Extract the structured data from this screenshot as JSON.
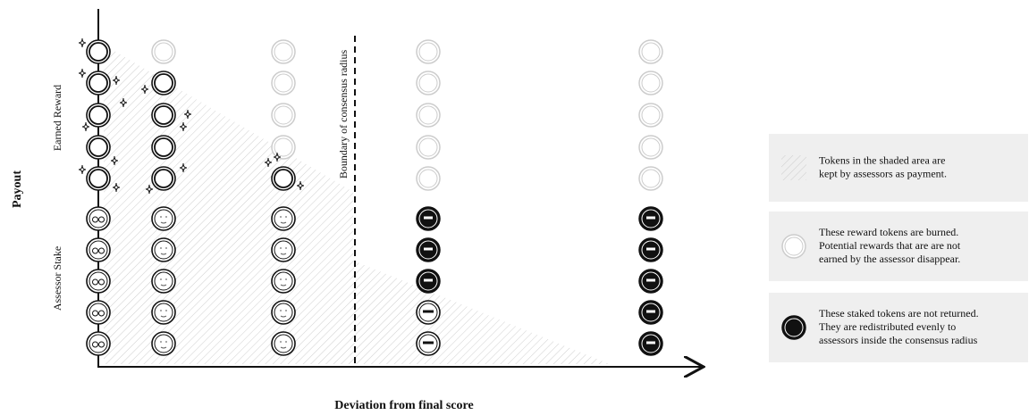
{
  "axes": {
    "y_label": "Payout",
    "x_label": "Deviation from final score"
  },
  "groups": {
    "earned": "Earned Reward",
    "stake": "Assessor Stake"
  },
  "boundary": "Boundary of consensus radius",
  "legend": [
    {
      "lines": [
        "Tokens in the shaded area are",
        "kept by assessors as payment."
      ]
    },
    {
      "lines": [
        "These reward tokens are burned.",
        "Potential rewards that are are not",
        "earned by the assessor disappear."
      ]
    },
    {
      "lines": [
        "These staked tokens are not returned.",
        "They are redistributed evenly to",
        "assessors inside the consensus radius"
      ]
    }
  ]
}
